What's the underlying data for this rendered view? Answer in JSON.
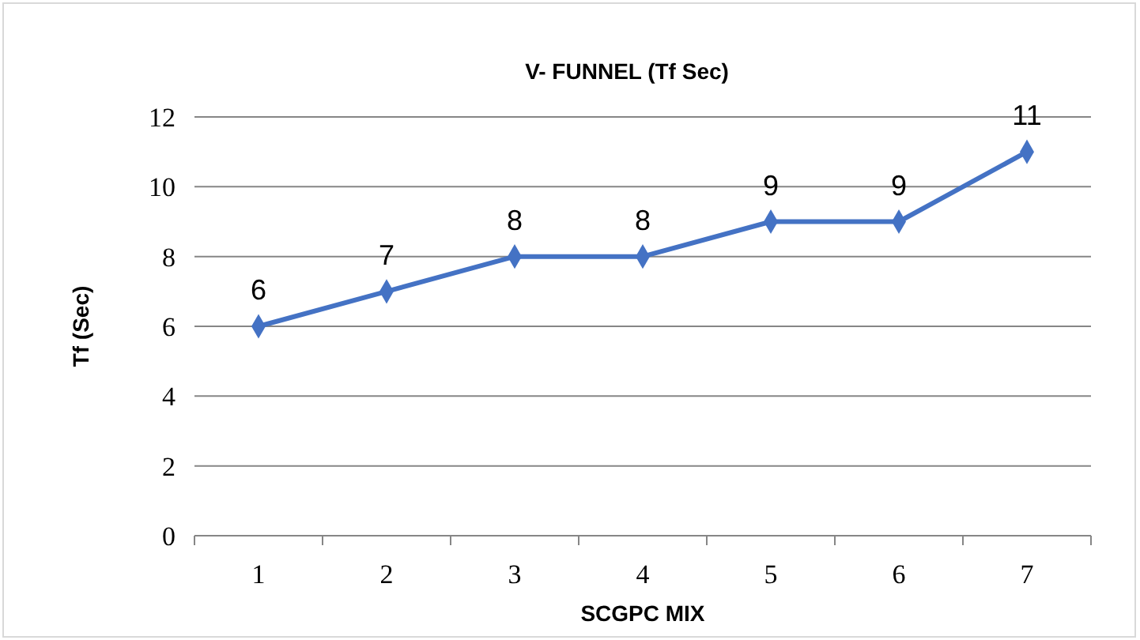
{
  "chart_data": {
    "type": "line",
    "title": "V- FUNNEL (Tf Sec)",
    "xlabel": "SCGPC MIX",
    "ylabel": "Tf (Sec)",
    "categories": [
      "1",
      "2",
      "3",
      "4",
      "5",
      "6",
      "7"
    ],
    "series": [
      {
        "color": "#4472c4",
        "values": [
          6,
          7,
          8,
          8,
          9,
          9,
          11
        ]
      }
    ],
    "ylim": [
      0,
      12
    ],
    "yticks": [
      0,
      2,
      4,
      6,
      8,
      10,
      12
    ],
    "grid": "y",
    "marker": "diamond",
    "data_labels": true
  }
}
